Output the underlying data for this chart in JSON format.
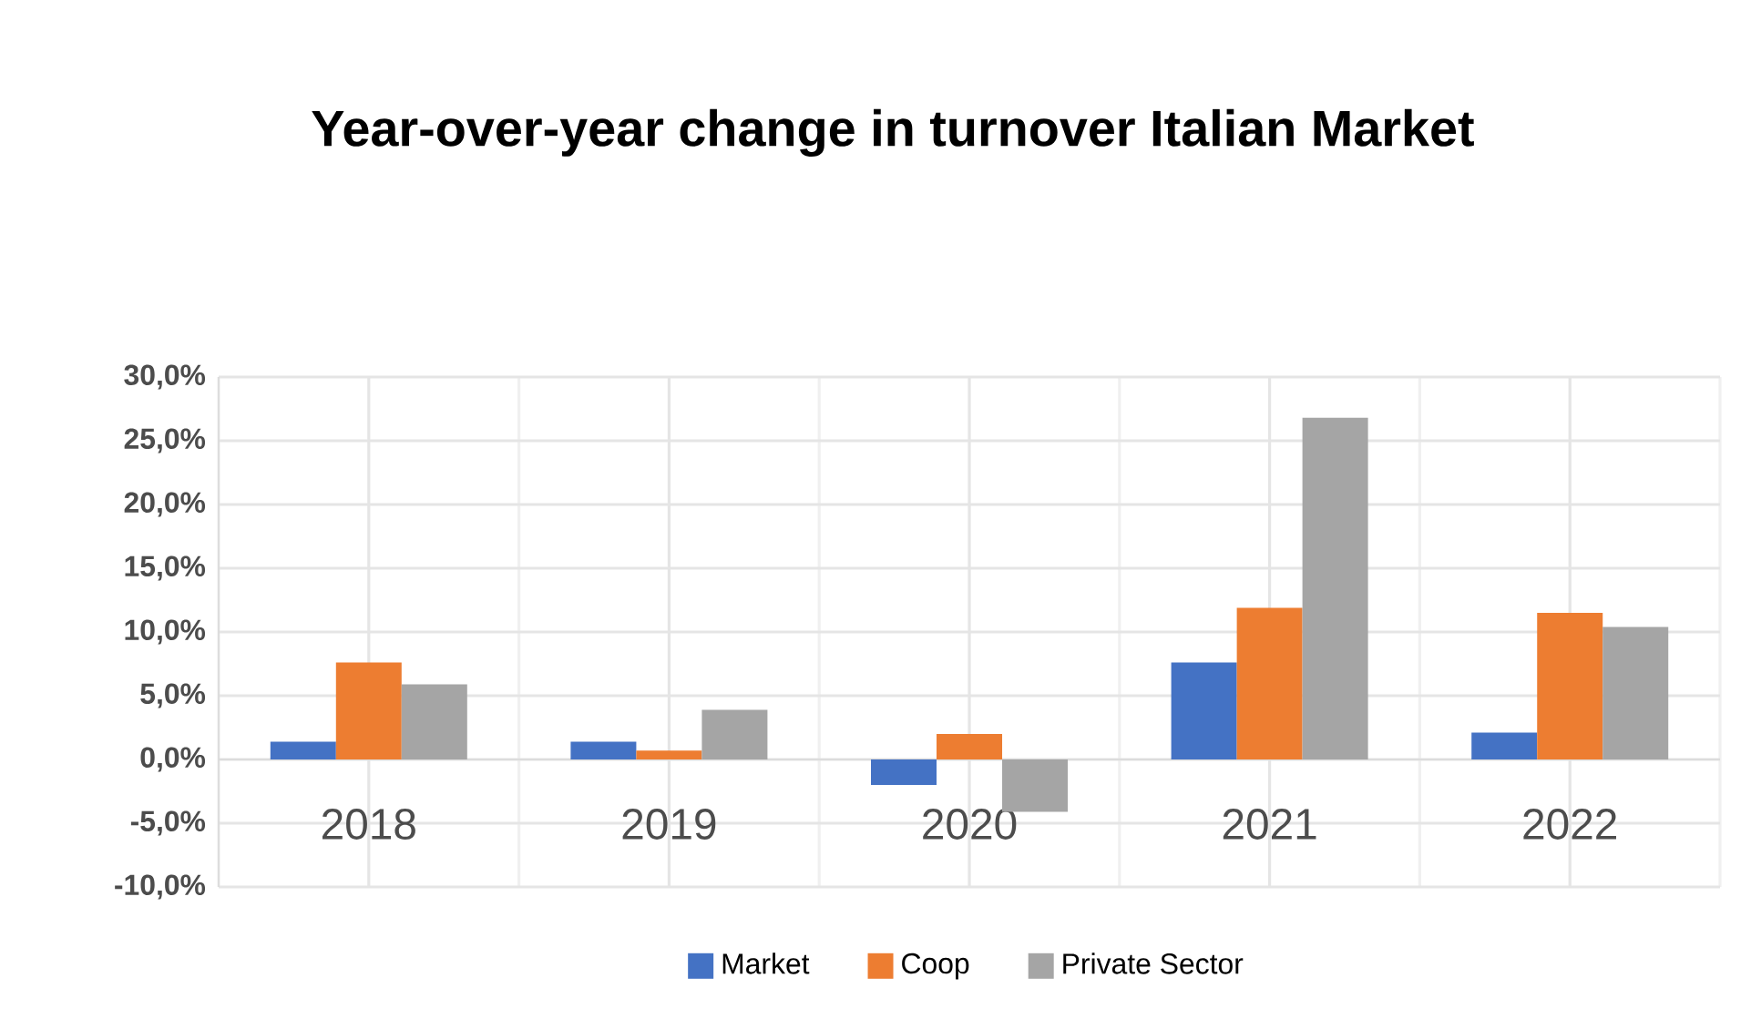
{
  "chart_data": {
    "type": "bar",
    "title": "Year-over-year change in turnover Italian Market",
    "categories": [
      "2018",
      "2019",
      "2020",
      "2021",
      "2022"
    ],
    "series": [
      {
        "name": "Market",
        "color": "#4472c4",
        "values": [
          1.4,
          1.4,
          -2.0,
          7.6,
          2.1
        ]
      },
      {
        "name": "Coop",
        "color": "#ed7d31",
        "values": [
          7.6,
          0.7,
          2.0,
          11.9,
          11.5
        ]
      },
      {
        "name": "Private Sector",
        "color": "#a5a5a5",
        "values": [
          5.9,
          3.9,
          -4.1,
          26.8,
          10.4
        ]
      }
    ],
    "ylim": [
      -10,
      30
    ],
    "yticks": [
      {
        "value": -10,
        "label": "-10,0%"
      },
      {
        "value": -5,
        "label": "-5,0%"
      },
      {
        "value": 0,
        "label": "0,0%"
      },
      {
        "value": 5,
        "label": "5,0%"
      },
      {
        "value": 10,
        "label": "10,0%"
      },
      {
        "value": 15,
        "label": "15,0%"
      },
      {
        "value": 20,
        "label": "20,0%"
      },
      {
        "value": 25,
        "label": "25,0%"
      },
      {
        "value": 30,
        "label": "30,0%"
      }
    ],
    "grid": true,
    "legend": "bottom"
  }
}
